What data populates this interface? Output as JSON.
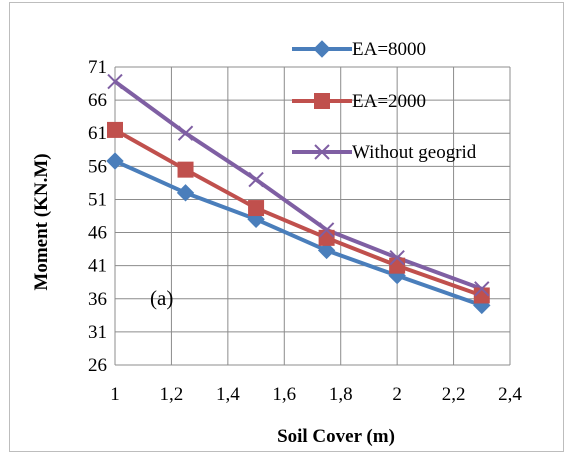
{
  "chart_data": {
    "type": "line",
    "title": "",
    "xlabel": "Soil Cover (m)",
    "ylabel": "Moment (KN.M)",
    "x": [
      1,
      1.25,
      1.5,
      1.75,
      2,
      2.3
    ],
    "xlim": [
      1,
      2.4
    ],
    "ylim": [
      26,
      71
    ],
    "xticks": [
      "1",
      "1,2",
      "1,4",
      "1,6",
      "1,8",
      "2",
      "2,2",
      "2,4"
    ],
    "yticks": [
      "26",
      "31",
      "36",
      "41",
      "46",
      "51",
      "56",
      "61",
      "66",
      "71"
    ],
    "grid": true,
    "legend_position": "top-right",
    "annotation": "(a)",
    "series": [
      {
        "name": "EA=8000",
        "color": "#4a7ebb",
        "marker": "diamond",
        "values": [
          56.8,
          52,
          48,
          43.3,
          39.5,
          35
        ]
      },
      {
        "name": "EA=2000",
        "color": "#c0504d",
        "marker": "square",
        "values": [
          61.5,
          55.5,
          49.7,
          45.2,
          41,
          36.5
        ]
      },
      {
        "name": "Without geogrid",
        "color": "#7f5fa3",
        "marker": "x",
        "values": [
          68.8,
          61,
          54,
          46.4,
          42.2,
          37.5
        ]
      }
    ]
  }
}
